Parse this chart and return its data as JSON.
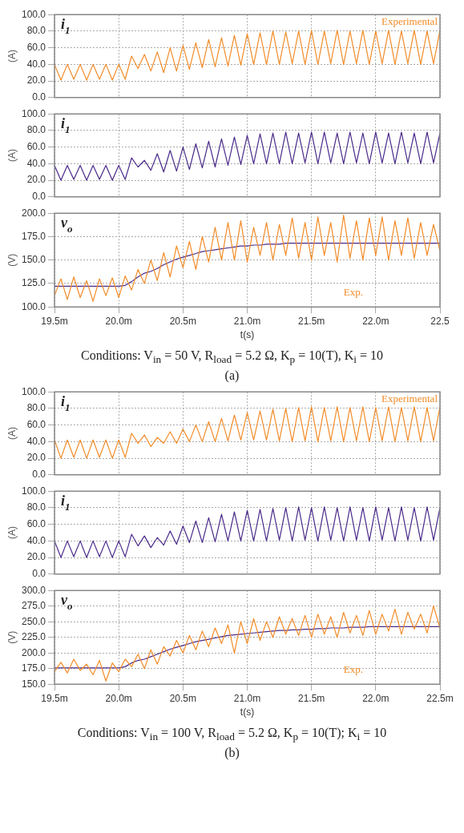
{
  "chart_data": [
    {
      "type": "line",
      "ylabel": "(A)",
      "annotations": [
        "i$_{1}$"
      ],
      "tick_labels": "y",
      "grid": true,
      "xlim": [
        19.5,
        22.5
      ],
      "xticks": [
        {
          "value": 19.5,
          "label": null
        },
        {
          "value": 20,
          "label": null
        },
        {
          "value": 20.5,
          "label": null
        },
        {
          "value": 21,
          "label": null
        },
        {
          "value": 21.5,
          "label": null
        },
        {
          "value": 22,
          "label": null
        },
        {
          "value": 22.5,
          "label": null
        }
      ],
      "ylim": [
        0,
        100
      ],
      "yticks": [
        {
          "value": 0,
          "label": "0.0"
        },
        {
          "value": 20,
          "label": "20.0"
        },
        {
          "value": 40,
          "label": "40.0"
        },
        {
          "value": 60,
          "label": "60.0"
        },
        {
          "value": 80,
          "label": "80.0"
        },
        {
          "value": 100,
          "label": "100.0"
        }
      ],
      "x": [
        19.5,
        19.55,
        19.6,
        19.65,
        19.7,
        19.75,
        19.8,
        19.85,
        19.9,
        19.95,
        20,
        20.05,
        20.1,
        20.15,
        20.2,
        20.25,
        20.3,
        20.35,
        20.4,
        20.45,
        20.5,
        20.55,
        20.6,
        20.65,
        20.7,
        20.75,
        20.8,
        20.85,
        20.9,
        20.95,
        21,
        21.05,
        21.1,
        21.15,
        21.2,
        21.25,
        21.3,
        21.35,
        21.4,
        21.45,
        21.5,
        21.55,
        21.6,
        21.65,
        21.7,
        21.75,
        21.8,
        21.85,
        21.9,
        21.95,
        22,
        22.05,
        22.1,
        22.15,
        22.2,
        22.25,
        22.3,
        22.35,
        22.4,
        22.45,
        22.5
      ],
      "series": [
        {
          "name": "Experimental",
          "color": "#f28c28",
          "values": [
            40,
            21,
            40,
            22,
            40,
            21,
            40,
            22,
            40,
            21,
            40,
            22,
            50,
            35,
            52,
            32,
            55,
            30,
            60,
            32,
            63,
            34,
            66,
            36,
            70,
            37,
            72,
            38,
            75,
            39,
            77,
            40,
            78,
            40,
            80,
            40,
            79,
            41,
            80,
            40,
            81,
            40,
            80,
            41,
            81,
            40,
            80,
            41,
            81,
            40,
            80,
            41,
            81,
            40,
            80,
            41,
            81,
            40,
            80,
            41,
            81
          ]
        }
      ]
    },
    {
      "type": "line",
      "ylabel": "(A)",
      "annotations": [
        "i$_{1}$"
      ],
      "tick_labels": "y",
      "grid": true,
      "xlim": [
        19.5,
        22.5
      ],
      "xticks": [
        {
          "value": 19.5,
          "label": null
        },
        {
          "value": 20,
          "label": null
        },
        {
          "value": 20.5,
          "label": null
        },
        {
          "value": 21,
          "label": null
        },
        {
          "value": 21.5,
          "label": null
        },
        {
          "value": 22,
          "label": null
        },
        {
          "value": 22.5,
          "label": null
        }
      ],
      "ylim": [
        0,
        100
      ],
      "yticks": [
        {
          "value": 0,
          "label": "0.0"
        },
        {
          "value": 20,
          "label": "20.0"
        },
        {
          "value": 40,
          "label": "40.0"
        },
        {
          "value": 60,
          "label": "60.0"
        },
        {
          "value": 80,
          "label": "80.0"
        },
        {
          "value": 100,
          "label": "100.0"
        }
      ],
      "x": [
        19.5,
        19.55,
        19.6,
        19.65,
        19.7,
        19.75,
        19.8,
        19.85,
        19.9,
        19.95,
        20,
        20.05,
        20.1,
        20.15,
        20.2,
        20.25,
        20.3,
        20.35,
        20.4,
        20.45,
        20.5,
        20.55,
        20.6,
        20.65,
        20.7,
        20.75,
        20.8,
        20.85,
        20.9,
        20.95,
        21,
        21.05,
        21.1,
        21.15,
        21.2,
        21.25,
        21.3,
        21.35,
        21.4,
        21.45,
        21.5,
        21.55,
        21.6,
        21.65,
        21.7,
        21.75,
        21.8,
        21.85,
        21.9,
        21.95,
        22,
        22.05,
        22.1,
        22.15,
        22.2,
        22.25,
        22.3,
        22.35,
        22.4,
        22.45,
        22.5
      ],
      "series": [
        {
          "color": "#4a2a8a",
          "values": [
            38,
            20,
            38,
            21,
            38,
            20,
            38,
            21,
            38,
            20,
            38,
            21,
            47,
            36,
            44,
            32,
            52,
            30,
            56,
            31,
            60,
            33,
            64,
            35,
            67,
            36,
            70,
            38,
            72,
            39,
            74,
            40,
            76,
            40,
            77,
            40,
            78,
            40,
            77,
            41,
            78,
            40,
            78,
            41,
            77,
            40,
            78,
            41,
            77,
            40,
            78,
            41,
            77,
            40,
            78,
            41,
            77,
            40,
            78,
            41,
            77
          ]
        }
      ]
    },
    {
      "type": "line",
      "ylabel": "(V)",
      "xlabel": "t(s)",
      "annotations": [
        "v$_{o}$",
        "Conditions: V$_{in}$ = 50 V, R$_{load}$ = 5.2 Ω, K$_{p}$ = 10(T), K$_{i}$ = 10",
        "(a)"
      ],
      "grid": true,
      "xlim": [
        19.5,
        22.5
      ],
      "xticks": [
        {
          "value": 19.5,
          "label": "19.5m"
        },
        {
          "value": 20,
          "label": "20.0m"
        },
        {
          "value": 20.5,
          "label": "20.5m"
        },
        {
          "value": 21,
          "label": "21.0m"
        },
        {
          "value": 21.5,
          "label": "21.5m"
        },
        {
          "value": 22,
          "label": "22.0m"
        },
        {
          "value": 22.5,
          "label": "22.5"
        }
      ],
      "ylim": [
        100,
        200
      ],
      "yticks": [
        {
          "value": 100,
          "label": "100.0"
        },
        {
          "value": 125,
          "label": "125.0"
        },
        {
          "value": 150,
          "label": "150.0"
        },
        {
          "value": 175,
          "label": "175.0"
        },
        {
          "value": 200,
          "label": "200.0"
        }
      ],
      "x": [
        19.5,
        19.55,
        19.6,
        19.65,
        19.7,
        19.75,
        19.8,
        19.85,
        19.9,
        19.95,
        20,
        20.05,
        20.1,
        20.15,
        20.2,
        20.25,
        20.3,
        20.35,
        20.4,
        20.45,
        20.5,
        20.55,
        20.6,
        20.65,
        20.7,
        20.75,
        20.8,
        20.85,
        20.9,
        20.95,
        21,
        21.05,
        21.1,
        21.15,
        21.2,
        21.25,
        21.3,
        21.35,
        21.4,
        21.45,
        21.5,
        21.55,
        21.6,
        21.65,
        21.7,
        21.75,
        21.8,
        21.85,
        21.9,
        21.95,
        22,
        22.05,
        22.1,
        22.15,
        22.2,
        22.25,
        22.3,
        22.35,
        22.4,
        22.45,
        22.5
      ],
      "series": [
        {
          "name": "Exp.",
          "color": "#f28c28",
          "values": [
            112,
            130,
            108,
            132,
            110,
            128,
            106,
            130,
            112,
            131,
            110,
            133,
            118,
            140,
            125,
            150,
            128,
            158,
            132,
            165,
            142,
            170,
            140,
            175,
            148,
            185,
            150,
            190,
            150,
            192,
            148,
            185,
            155,
            190,
            150,
            188,
            155,
            195,
            152,
            190,
            150,
            196,
            155,
            190,
            148,
            198,
            152,
            192,
            150,
            195,
            155,
            196,
            150,
            192,
            155,
            195,
            152,
            190,
            155,
            188,
            160
          ]
        },
        {
          "color": "#4a2a8a",
          "values": [
            122,
            122,
            122,
            122,
            122,
            122,
            122,
            122,
            122,
            122,
            122,
            123,
            127,
            132,
            136,
            138,
            141,
            145,
            148,
            151,
            153,
            155,
            157,
            159,
            160,
            161,
            162,
            163,
            164,
            165,
            165,
            166,
            166,
            167,
            167,
            167,
            168,
            168,
            168,
            168,
            168,
            168,
            168,
            168,
            168,
            168,
            168,
            168,
            168,
            168,
            168,
            168,
            168,
            168,
            168,
            168,
            168,
            168,
            168,
            168,
            168
          ]
        }
      ]
    },
    {
      "type": "line",
      "ylabel": "(A)",
      "annotations": [
        "i$_{1}$"
      ],
      "tick_labels": "y",
      "grid": true,
      "xlim": [
        19.5,
        22.5
      ],
      "xticks": [
        {
          "value": 19.5,
          "label": null
        },
        {
          "value": 20,
          "label": null
        },
        {
          "value": 20.5,
          "label": null
        },
        {
          "value": 21,
          "label": null
        },
        {
          "value": 21.5,
          "label": null
        },
        {
          "value": 22,
          "label": null
        },
        {
          "value": 22.5,
          "label": null
        }
      ],
      "ylim": [
        0,
        100
      ],
      "yticks": [
        {
          "value": 0,
          "label": "0.0"
        },
        {
          "value": 20,
          "label": "20.0"
        },
        {
          "value": 40,
          "label": "40.0"
        },
        {
          "value": 60,
          "label": "60.0"
        },
        {
          "value": 80,
          "label": "80.0"
        },
        {
          "value": 100,
          "label": "100.0"
        }
      ],
      "x": [
        19.5,
        19.55,
        19.6,
        19.65,
        19.7,
        19.75,
        19.8,
        19.85,
        19.9,
        19.95,
        20,
        20.05,
        20.1,
        20.15,
        20.2,
        20.25,
        20.3,
        20.35,
        20.4,
        20.45,
        20.5,
        20.55,
        20.6,
        20.65,
        20.7,
        20.75,
        20.8,
        20.85,
        20.9,
        20.95,
        21,
        21.05,
        21.1,
        21.15,
        21.2,
        21.25,
        21.3,
        21.35,
        21.4,
        21.45,
        21.5,
        21.55,
        21.6,
        21.65,
        21.7,
        21.75,
        21.8,
        21.85,
        21.9,
        21.95,
        22,
        22.05,
        22.1,
        22.15,
        22.2,
        22.25,
        22.3,
        22.35,
        22.4,
        22.45,
        22.5
      ],
      "series": [
        {
          "name": "Experimental",
          "color": "#f28c28",
          "values": [
            42,
            20,
            42,
            21,
            42,
            20,
            42,
            21,
            42,
            20,
            42,
            21,
            50,
            38,
            48,
            34,
            45,
            38,
            52,
            38,
            55,
            40,
            60,
            40,
            64,
            40,
            68,
            41,
            72,
            42,
            75,
            42,
            77,
            42,
            79,
            41,
            80,
            40,
            81,
            41,
            82,
            40,
            81,
            41,
            82,
            40,
            81,
            41,
            82,
            40,
            81,
            41,
            82,
            40,
            81,
            41,
            82,
            40,
            81,
            41,
            82
          ]
        }
      ]
    },
    {
      "type": "line",
      "ylabel": "(A)",
      "annotations": [
        "i$_{1}$"
      ],
      "tick_labels": "y",
      "grid": true,
      "xlim": [
        19.5,
        22.5
      ],
      "xticks": [
        {
          "value": 19.5,
          "label": null
        },
        {
          "value": 20,
          "label": null
        },
        {
          "value": 20.5,
          "label": null
        },
        {
          "value": 21,
          "label": null
        },
        {
          "value": 21.5,
          "label": null
        },
        {
          "value": 22,
          "label": null
        },
        {
          "value": 22.5,
          "label": null
        }
      ],
      "ylim": [
        0,
        100
      ],
      "yticks": [
        {
          "value": 0,
          "label": "0.0"
        },
        {
          "value": 20,
          "label": "20.0"
        },
        {
          "value": 40,
          "label": "40.0"
        },
        {
          "value": 60,
          "label": "60.0"
        },
        {
          "value": 80,
          "label": "80.0"
        },
        {
          "value": 100,
          "label": "100.0"
        }
      ],
      "x": [
        19.5,
        19.55,
        19.6,
        19.65,
        19.7,
        19.75,
        19.8,
        19.85,
        19.9,
        19.95,
        20,
        20.05,
        20.1,
        20.15,
        20.2,
        20.25,
        20.3,
        20.35,
        20.4,
        20.45,
        20.5,
        20.55,
        20.6,
        20.65,
        20.7,
        20.75,
        20.8,
        20.85,
        20.9,
        20.95,
        21,
        21.05,
        21.1,
        21.15,
        21.2,
        21.25,
        21.3,
        21.35,
        21.4,
        21.45,
        21.5,
        21.55,
        21.6,
        21.65,
        21.7,
        21.75,
        21.8,
        21.85,
        21.9,
        21.95,
        22,
        22.05,
        22.1,
        22.15,
        22.2,
        22.25,
        22.3,
        22.35,
        22.4,
        22.45,
        22.5
      ],
      "series": [
        {
          "color": "#4a2a8a",
          "values": [
            40,
            20,
            40,
            21,
            40,
            20,
            40,
            21,
            40,
            20,
            40,
            21,
            48,
            34,
            46,
            32,
            44,
            35,
            52,
            36,
            58,
            38,
            64,
            38,
            68,
            39,
            72,
            40,
            75,
            40,
            77,
            40,
            78,
            40,
            79,
            41,
            80,
            40,
            81,
            41,
            80,
            40,
            81,
            41,
            80,
            40,
            81,
            41,
            80,
            40,
            81,
            41,
            80,
            40,
            81,
            41,
            80,
            40,
            81,
            41,
            80
          ]
        }
      ]
    },
    {
      "type": "line",
      "ylabel": "(V)",
      "xlabel": "t(s)",
      "annotations": [
        "v$_{o}$",
        "Conditions: V$_{in}$ = 100 V, R$_{load}$ = 5.2 Ω, K$_{p}$ = 10(T); K$_{i}$ = 10",
        "(b)"
      ],
      "grid": true,
      "xlim": [
        19.5,
        22.5
      ],
      "xticks": [
        {
          "value": 19.5,
          "label": "19.5m"
        },
        {
          "value": 20,
          "label": "20.0m"
        },
        {
          "value": 20.5,
          "label": "20.5m"
        },
        {
          "value": 21,
          "label": "21.0m"
        },
        {
          "value": 21.5,
          "label": "21.5m"
        },
        {
          "value": 22,
          "label": "22.0m"
        },
        {
          "value": 22.5,
          "label": "22.5m"
        }
      ],
      "ylim": [
        150,
        300
      ],
      "yticks": [
        {
          "value": 150,
          "label": "150.0"
        },
        {
          "value": 175,
          "label": "175.0"
        },
        {
          "value": 200,
          "label": "200.0"
        },
        {
          "value": 225,
          "label": "225.0"
        },
        {
          "value": 250,
          "label": "250.0"
        },
        {
          "value": 275,
          "label": "275.0"
        },
        {
          "value": 300,
          "label": "300.0"
        }
      ],
      "x": [
        19.5,
        19.55,
        19.6,
        19.65,
        19.7,
        19.75,
        19.8,
        19.85,
        19.9,
        19.95,
        20,
        20.05,
        20.1,
        20.15,
        20.2,
        20.25,
        20.3,
        20.35,
        20.4,
        20.45,
        20.5,
        20.55,
        20.6,
        20.65,
        20.7,
        20.75,
        20.8,
        20.85,
        20.9,
        20.95,
        21,
        21.05,
        21.1,
        21.15,
        21.2,
        21.25,
        21.3,
        21.35,
        21.4,
        21.45,
        21.5,
        21.55,
        21.6,
        21.65,
        21.7,
        21.75,
        21.8,
        21.85,
        21.9,
        21.95,
        22,
        22.05,
        22.1,
        22.15,
        22.2,
        22.25,
        22.3,
        22.35,
        22.4,
        22.45,
        22.5
      ],
      "series": [
        {
          "name": "Exp.",
          "color": "#f28c28",
          "values": [
            170,
            185,
            168,
            190,
            172,
            182,
            165,
            188,
            155,
            184,
            170,
            190,
            178,
            198,
            175,
            205,
            182,
            210,
            195,
            220,
            200,
            228,
            205,
            235,
            210,
            240,
            215,
            245,
            200,
            250,
            215,
            255,
            220,
            250,
            225,
            258,
            230,
            255,
            228,
            260,
            225,
            262,
            230,
            258,
            225,
            265,
            232,
            260,
            228,
            268,
            230,
            262,
            235,
            270,
            230,
            265,
            238,
            262,
            232,
            275,
            240
          ]
        },
        {
          "color": "#4a2a8a",
          "values": [
            176,
            176,
            176,
            176,
            176,
            176,
            176,
            176,
            176,
            176,
            176,
            178,
            184,
            188,
            190,
            194,
            198,
            202,
            206,
            209,
            212,
            215,
            218,
            220,
            222,
            224,
            226,
            228,
            229,
            230,
            231,
            232,
            233,
            234,
            235,
            236,
            236,
            237,
            237,
            238,
            238,
            239,
            239,
            240,
            240,
            240,
            241,
            241,
            241,
            242,
            242,
            242,
            242,
            242,
            242,
            242,
            242,
            242,
            242,
            242,
            242
          ]
        }
      ]
    }
  ]
}
